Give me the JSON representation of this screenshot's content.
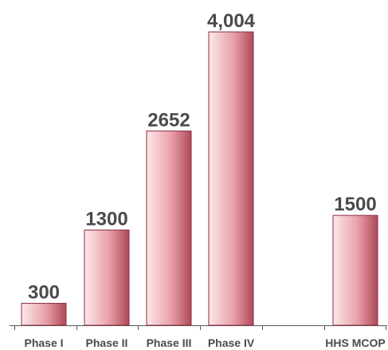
{
  "chart_data": {
    "type": "bar",
    "categories": [
      "Phase I",
      "Phase II",
      "Phase III",
      "Phase IV",
      "",
      "HHS MCOP"
    ],
    "values": [
      300,
      1300,
      2652,
      4004,
      null,
      1500
    ],
    "value_labels": [
      "300",
      "1300",
      "2652",
      "4,004",
      "",
      "1500"
    ],
    "title": "",
    "xlabel": "",
    "ylabel": "",
    "ylim": [
      0,
      4004
    ],
    "grid": false,
    "legend": "none",
    "colors": {
      "bar_light": "#fde8ea",
      "bar_mid": "#e8a0a8",
      "bar_dark": "#b04858",
      "text": "#4a4a4a",
      "axis": "#555555"
    }
  }
}
